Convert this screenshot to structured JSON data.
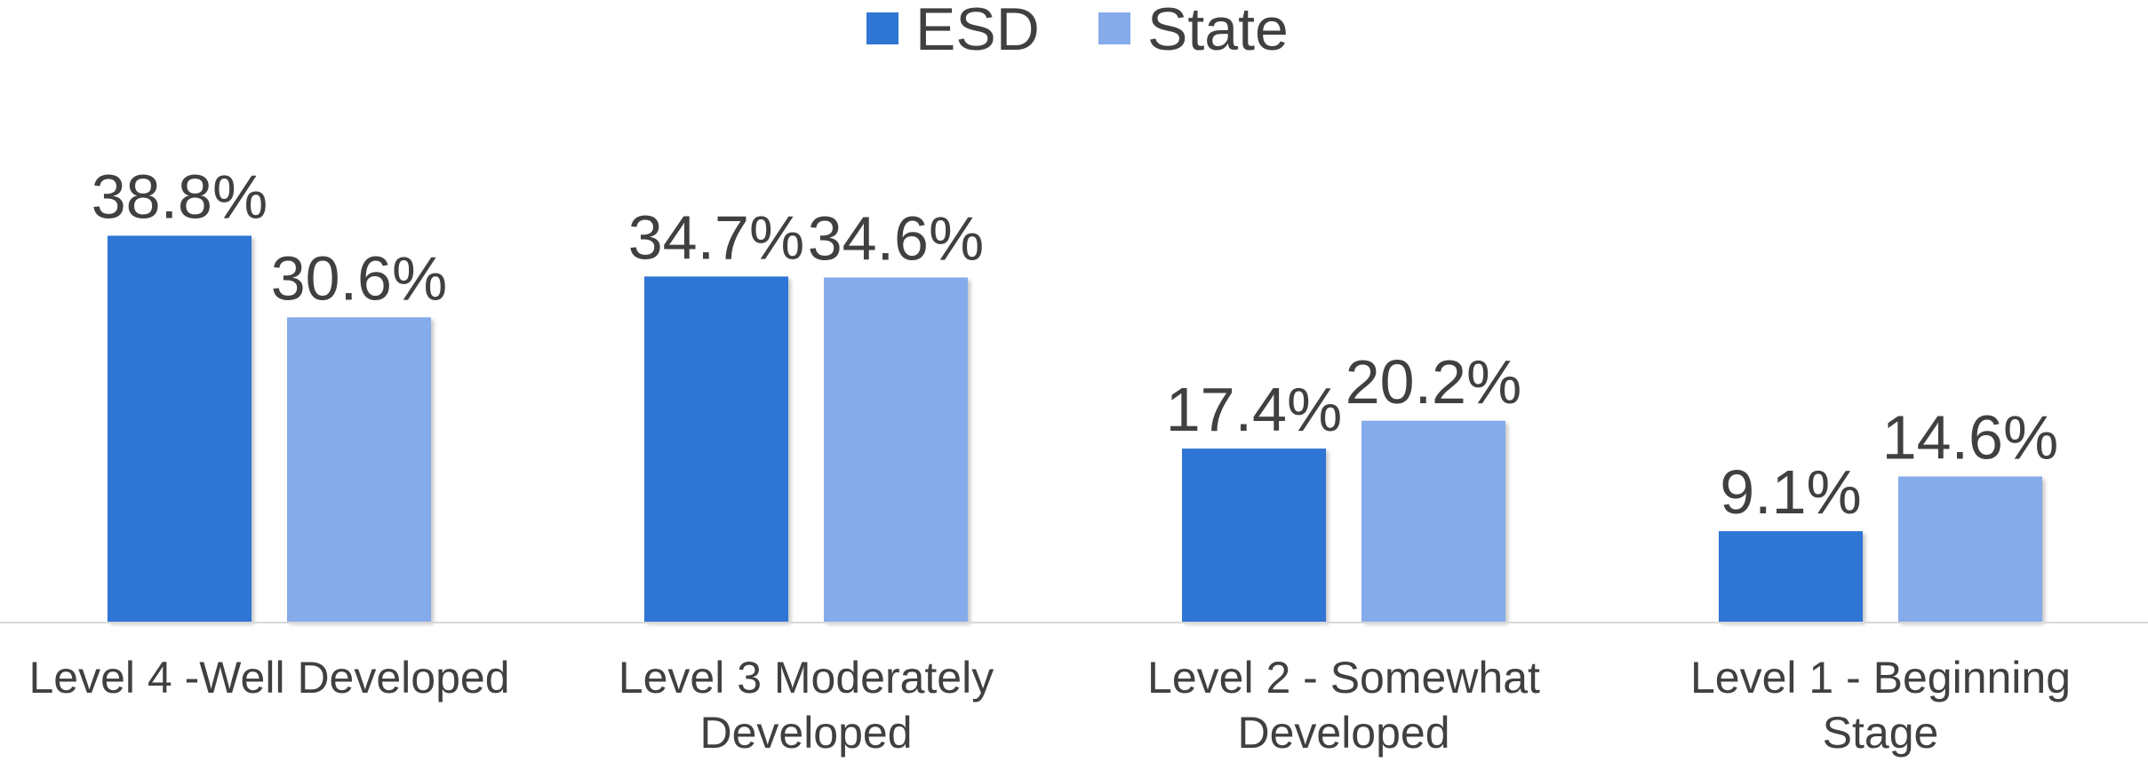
{
  "chart_data": {
    "type": "bar",
    "categories": [
      [
        "Level 4 -Well Developed"
      ],
      [
        "Level 3 Moderately",
        "Developed"
      ],
      [
        "Level 2 - Somewhat",
        "Developed"
      ],
      [
        "Level 1 - Beginning",
        "Stage"
      ]
    ],
    "series": [
      {
        "name": "ESD",
        "values": [
          38.8,
          34.7,
          17.4,
          9.1
        ],
        "data_labels": [
          "38.8%",
          "34.7%",
          "17.4%",
          "9.1%"
        ],
        "color": "#2E75D4"
      },
      {
        "name": "State",
        "values": [
          30.6,
          34.6,
          20.2,
          14.6
        ],
        "data_labels": [
          "30.6%",
          "34.6%",
          "20.2%",
          "14.6%"
        ],
        "color": "#86ABEA"
      }
    ],
    "ylim": [
      0,
      45
    ],
    "grid": false,
    "legend_position": "top-center",
    "axis_color": "#D9D9D9",
    "text_color": "#404040"
  }
}
